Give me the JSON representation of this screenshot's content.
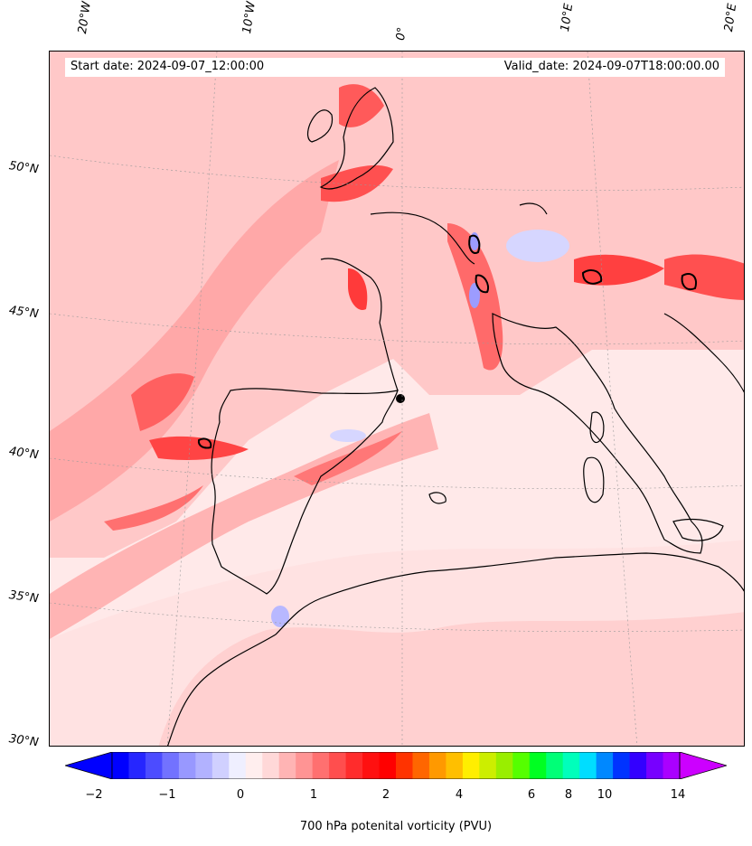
{
  "header": {
    "start_date": "Start date: 2024-09-07_12:00:00",
    "valid_date": "Valid_date: 2024-09-07T18:00:00.00"
  },
  "axes": {
    "lon_labels": [
      "20°W",
      "10°W",
      "0°",
      "10°E",
      "20°E"
    ],
    "lat_labels": [
      "50°N",
      "45°N",
      "40°N",
      "35°N",
      "30°N"
    ]
  },
  "colorbar": {
    "label": "700 hPa potenital vorticity (PVU)",
    "ticks": [
      "−2",
      "−1",
      "0",
      "1",
      "2",
      "4",
      "6",
      "8",
      "10",
      "14"
    ],
    "colors": [
      "#0000ff",
      "#2626ff",
      "#4c4cff",
      "#7272ff",
      "#9898ff",
      "#b2b2ff",
      "#d0d0ff",
      "#efefff",
      "#ffeeee",
      "#ffd8d8",
      "#ffb4b4",
      "#ff9494",
      "#ff7070",
      "#ff4e4e",
      "#ff2c2c",
      "#ff1010",
      "#ff0000",
      "#ff3300",
      "#ff6600",
      "#ff9900",
      "#ffbf00",
      "#ffee00",
      "#ccee00",
      "#99ee00",
      "#55ff00",
      "#00ff22",
      "#00ff77",
      "#00ffbb",
      "#00ddff",
      "#0088ff",
      "#0033ff",
      "#3300ff",
      "#7700ff",
      "#aa00ff"
    ],
    "min_color": "#0000ff",
    "max_color": "#cc00ff"
  }
}
